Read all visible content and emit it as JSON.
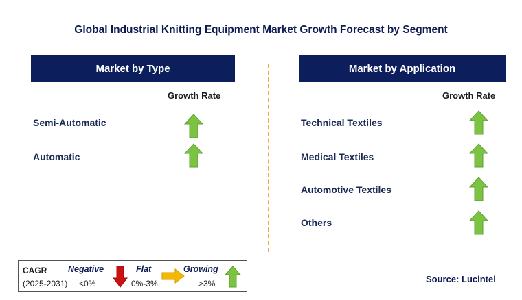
{
  "title": "Global Industrial Knitting Equipment Market Growth Forecast by Segment",
  "left_panel": {
    "header": "Market by Type",
    "growth_label": "Growth Rate",
    "items": [
      {
        "label": "Semi-Automatic",
        "trend": "growing"
      },
      {
        "label": "Automatic",
        "trend": "growing"
      }
    ]
  },
  "right_panel": {
    "header": "Market by Application",
    "growth_label": "Growth Rate",
    "items": [
      {
        "label": "Technical Textiles",
        "trend": "growing"
      },
      {
        "label": "Medical Textiles",
        "trend": "growing"
      },
      {
        "label": "Automotive Textiles",
        "trend": "growing"
      },
      {
        "label": "Others",
        "trend": "growing"
      }
    ]
  },
  "legend": {
    "cagr": "CAGR",
    "period": "(2025-2031)",
    "negative": {
      "label": "Negative",
      "range": "<0%",
      "icon": "arrow-down-icon",
      "color": "#cc1111"
    },
    "flat": {
      "label": "Flat",
      "range": "0%-3%",
      "icon": "arrow-right-icon",
      "color": "#f5b800"
    },
    "growing": {
      "label": "Growing",
      "range": ">3%",
      "icon": "arrow-up-icon",
      "color": "#7cc243"
    }
  },
  "source": "Source: Lucintel",
  "colors": {
    "header_bg": "#0c1f5c",
    "divider": "#f2a93b",
    "up_arrow": "#7cc243"
  }
}
